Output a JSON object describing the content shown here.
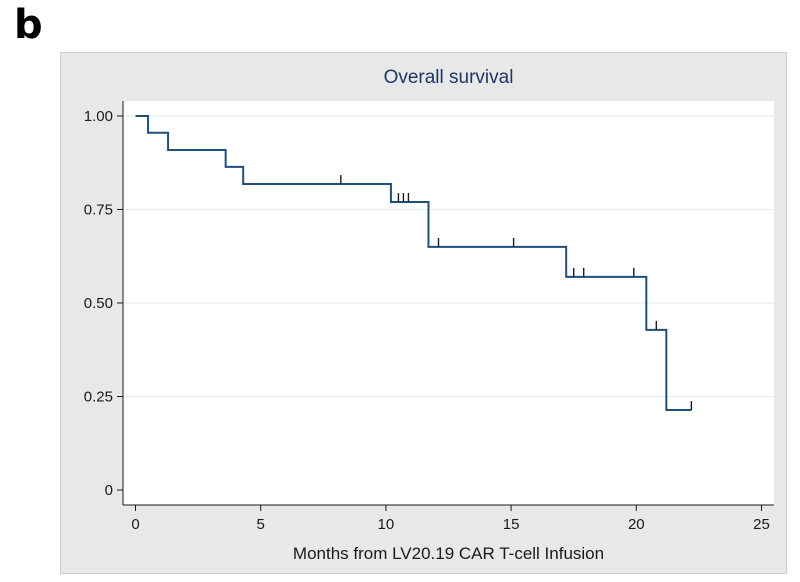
{
  "panel_label": "b",
  "colors": {
    "curve": "#1f4e79",
    "censor": "#1a1a1a",
    "grid": "#e4eef0",
    "frame_bg": "#e8e8e8",
    "plot_bg": "#ffffff",
    "title": "#1f3566"
  },
  "chart_data": {
    "type": "line",
    "subtype": "kaplan-meier-step",
    "title": "Overall survival",
    "xlabel": "Months from LV20.19 CAR T-cell Infusion",
    "ylabel": "",
    "xlim": [
      -0.5,
      25.5
    ],
    "ylim": [
      -0.04,
      1.04
    ],
    "xticks": [
      0,
      5,
      10,
      15,
      20,
      25
    ],
    "xtick_labels": [
      "0",
      "5",
      "10",
      "15",
      "20",
      "25"
    ],
    "yticks": [
      0,
      0.25,
      0.5,
      0.75,
      1.0
    ],
    "ytick_labels": [
      "0",
      "0.25",
      "0.50",
      "0.75",
      "1.00"
    ],
    "grid": "horizontal",
    "series": [
      {
        "name": "Overall survival",
        "steps": [
          {
            "x": 0,
            "y": 1.0
          },
          {
            "x": 0.5,
            "y": 0.955
          },
          {
            "x": 1.3,
            "y": 0.909
          },
          {
            "x": 3.6,
            "y": 0.864
          },
          {
            "x": 4.3,
            "y": 0.818
          },
          {
            "x": 10.2,
            "y": 0.77
          },
          {
            "x": 11.7,
            "y": 0.65
          },
          {
            "x": 17.2,
            "y": 0.57
          },
          {
            "x": 20.4,
            "y": 0.428
          },
          {
            "x": 21.2,
            "y": 0.214
          }
        ],
        "end_x": 22.2,
        "censored": [
          {
            "x": 8.2,
            "y": 0.818
          },
          {
            "x": 10.5,
            "y": 0.77
          },
          {
            "x": 10.7,
            "y": 0.77
          },
          {
            "x": 10.9,
            "y": 0.77
          },
          {
            "x": 12.1,
            "y": 0.65
          },
          {
            "x": 15.1,
            "y": 0.65
          },
          {
            "x": 17.5,
            "y": 0.57
          },
          {
            "x": 17.9,
            "y": 0.57
          },
          {
            "x": 19.9,
            "y": 0.57
          },
          {
            "x": 20.8,
            "y": 0.428
          },
          {
            "x": 22.2,
            "y": 0.214
          }
        ]
      }
    ]
  }
}
